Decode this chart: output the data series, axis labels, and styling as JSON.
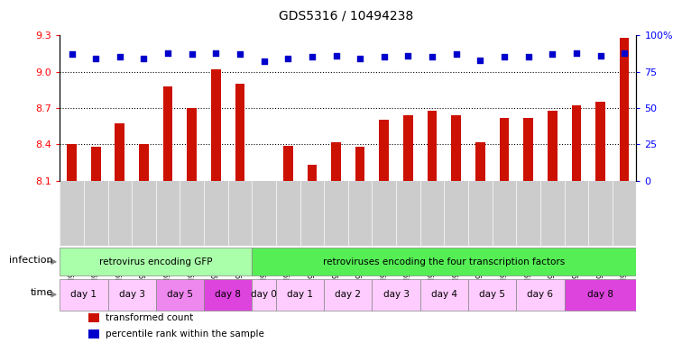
{
  "title": "GDS5316 / 10494238",
  "samples": [
    "GSM943810",
    "GSM943811",
    "GSM943812",
    "GSM943813",
    "GSM943814",
    "GSM943815",
    "GSM943816",
    "GSM943817",
    "GSM943794",
    "GSM943795",
    "GSM943796",
    "GSM943797",
    "GSM943798",
    "GSM943799",
    "GSM943800",
    "GSM943801",
    "GSM943802",
    "GSM943803",
    "GSM943804",
    "GSM943805",
    "GSM943806",
    "GSM943807",
    "GSM943808",
    "GSM943809"
  ],
  "bar_values": [
    8.4,
    8.38,
    8.57,
    8.4,
    8.88,
    8.7,
    9.02,
    8.9,
    8.1,
    8.39,
    8.23,
    8.42,
    8.38,
    8.6,
    8.64,
    8.68,
    8.64,
    8.42,
    8.62,
    8.62,
    8.68,
    8.72,
    8.75,
    9.28
  ],
  "percentile_values": [
    87,
    84,
    85,
    84,
    88,
    87,
    88,
    87,
    82,
    84,
    85,
    86,
    84,
    85,
    86,
    85,
    87,
    83,
    85,
    85,
    87,
    88,
    86,
    88
  ],
  "ylim_left": [
    8.1,
    9.3
  ],
  "ylim_right": [
    0,
    100
  ],
  "yticks_left": [
    8.1,
    8.4,
    8.7,
    9.0,
    9.3
  ],
  "yticks_right": [
    0,
    25,
    50,
    75,
    100
  ],
  "bar_color": "#cc1100",
  "dot_color": "#0000cc",
  "infection_groups": [
    {
      "label": "retrovirus encoding GFP",
      "start": 0,
      "end": 8,
      "color": "#aaffaa"
    },
    {
      "label": "retroviruses encoding the four transcription factors",
      "start": 8,
      "end": 24,
      "color": "#55ee55"
    }
  ],
  "time_groups": [
    {
      "label": "day 1",
      "start": 0,
      "end": 2,
      "color": "#ffccff"
    },
    {
      "label": "day 3",
      "start": 2,
      "end": 4,
      "color": "#ffccff"
    },
    {
      "label": "day 5",
      "start": 4,
      "end": 6,
      "color": "#ee88ee"
    },
    {
      "label": "day 8",
      "start": 6,
      "end": 8,
      "color": "#dd44dd"
    },
    {
      "label": "day 0",
      "start": 8,
      "end": 9,
      "color": "#ffccff"
    },
    {
      "label": "day 1",
      "start": 9,
      "end": 11,
      "color": "#ffccff"
    },
    {
      "label": "day 2",
      "start": 11,
      "end": 13,
      "color": "#ffccff"
    },
    {
      "label": "day 3",
      "start": 13,
      "end": 15,
      "color": "#ffccff"
    },
    {
      "label": "day 4",
      "start": 15,
      "end": 17,
      "color": "#ffccff"
    },
    {
      "label": "day 5",
      "start": 17,
      "end": 19,
      "color": "#ffccff"
    },
    {
      "label": "day 6",
      "start": 19,
      "end": 21,
      "color": "#ffccff"
    },
    {
      "label": "day 8",
      "start": 21,
      "end": 24,
      "color": "#dd44dd"
    }
  ],
  "legend_items": [
    {
      "label": "transformed count",
      "color": "#cc1100"
    },
    {
      "label": "percentile rank within the sample",
      "color": "#0000cc"
    }
  ],
  "xtick_bg_color": "#cccccc",
  "left_label_color": "#888888"
}
